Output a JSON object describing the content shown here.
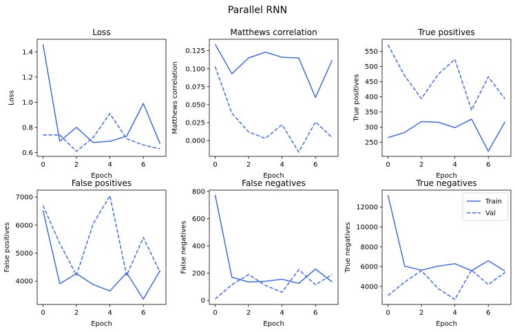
{
  "figure": {
    "title": "Parallel RNN",
    "legend": {
      "placement": "upper right",
      "entries": [
        "Train",
        "Val"
      ]
    },
    "line_color": "#4169e1",
    "axes_color": "#000000"
  },
  "chart_data": [
    {
      "type": "line",
      "title": "Loss",
      "xlabel": "Epoch",
      "ylabel": "Loss",
      "x": [
        0,
        1,
        2,
        3,
        4,
        5,
        6,
        7
      ],
      "xlim": [
        -0.35,
        7.35
      ],
      "xticks": [
        0,
        2,
        4,
        6
      ],
      "ylim": [
        0.57,
        1.5
      ],
      "yticks": [
        0.6,
        0.8,
        1.0,
        1.2,
        1.4
      ],
      "ytick_labels": [
        "0.6",
        "0.8",
        "1.0",
        "1.2",
        "1.4"
      ],
      "series": [
        {
          "name": "Train",
          "style": "solid",
          "values": [
            1.46,
            0.69,
            0.8,
            0.68,
            0.69,
            0.73,
            0.99,
            0.67
          ]
        },
        {
          "name": "Val",
          "style": "dashed",
          "values": [
            0.74,
            0.74,
            0.61,
            0.72,
            0.91,
            0.71,
            0.66,
            0.63
          ]
        }
      ]
    },
    {
      "type": "line",
      "title": "Matthews correlation",
      "xlabel": "Epoch",
      "ylabel": "Matthews correlation",
      "x": [
        0,
        1,
        2,
        3,
        4,
        5,
        6,
        7
      ],
      "xlim": [
        -0.35,
        7.35
      ],
      "xticks": [
        0,
        2,
        4,
        6
      ],
      "ylim": [
        -0.022,
        0.141
      ],
      "yticks": [
        0.0,
        0.025,
        0.05,
        0.075,
        0.1,
        0.125
      ],
      "ytick_labels": [
        "0.000",
        "0.025",
        "0.050",
        "0.075",
        "0.100",
        "0.125"
      ],
      "series": [
        {
          "name": "Train",
          "style": "solid",
          "values": [
            0.134,
            0.093,
            0.115,
            0.123,
            0.116,
            0.115,
            0.06,
            0.112
          ]
        },
        {
          "name": "Val",
          "style": "dashed",
          "values": [
            0.103,
            0.038,
            0.012,
            0.003,
            0.022,
            -0.016,
            0.026,
            0.004
          ]
        }
      ]
    },
    {
      "type": "line",
      "title": "True positives",
      "xlabel": "Epoch",
      "ylabel": "True positives",
      "x": [
        0,
        1,
        2,
        3,
        4,
        5,
        6,
        7
      ],
      "xlim": [
        -0.35,
        7.35
      ],
      "xticks": [
        0,
        2,
        4,
        6
      ],
      "ylim": [
        203,
        590
      ],
      "yticks": [
        250,
        300,
        350,
        400,
        450,
        500,
        550
      ],
      "ytick_labels": [
        "250",
        "300",
        "350",
        "400",
        "450",
        "500",
        "550"
      ],
      "series": [
        {
          "name": "Train",
          "style": "solid",
          "values": [
            265,
            282,
            318,
            316,
            298,
            326,
            220,
            317
          ]
        },
        {
          "name": "Val",
          "style": "dashed",
          "values": [
            572,
            469,
            394,
            474,
            524,
            356,
            466,
            393
          ]
        }
      ]
    },
    {
      "type": "line",
      "title": "False positives",
      "xlabel": "Epoch",
      "ylabel": "False positives",
      "x": [
        0,
        1,
        2,
        3,
        4,
        5,
        6,
        7
      ],
      "xlim": [
        -0.35,
        7.35
      ],
      "xticks": [
        0,
        2,
        4,
        6
      ],
      "ylim": [
        3170,
        7250
      ],
      "yticks": [
        4000,
        5000,
        6000,
        7000
      ],
      "ytick_labels": [
        "4000",
        "5000",
        "6000",
        "7000"
      ],
      "series": [
        {
          "name": "Train",
          "style": "solid",
          "values": [
            6520,
            3910,
            4270,
            3880,
            3650,
            4300,
            3360,
            4380
          ]
        },
        {
          "name": "Val",
          "style": "dashed",
          "values": [
            6700,
            5350,
            4210,
            6050,
            7050,
            4200,
            5560,
            4320
          ]
        }
      ]
    },
    {
      "type": "line",
      "title": "False negatives",
      "xlabel": "Epoch",
      "ylabel": "False negatives",
      "x": [
        0,
        1,
        2,
        3,
        4,
        5,
        6,
        7
      ],
      "xlim": [
        -0.35,
        7.35
      ],
      "xticks": [
        0,
        2,
        4,
        6
      ],
      "ylim": [
        -30,
        810
      ],
      "yticks": [
        0,
        200,
        400,
        600,
        800
      ],
      "ytick_labels": [
        "0",
        "200",
        "400",
        "600",
        "800"
      ],
      "series": [
        {
          "name": "Train",
          "style": "solid",
          "values": [
            775,
            170,
            135,
            140,
            155,
            125,
            230,
            135
          ]
        },
        {
          "name": "Val",
          "style": "dashed",
          "values": [
            10,
            115,
            190,
            110,
            60,
            225,
            115,
            190
          ]
        }
      ]
    },
    {
      "type": "line",
      "title": "True negatives",
      "xlabel": "Epoch",
      "ylabel": "True negatives",
      "x": [
        0,
        1,
        2,
        3,
        4,
        5,
        6,
        7
      ],
      "xlim": [
        -0.35,
        7.35
      ],
      "xticks": [
        0,
        2,
        4,
        6
      ],
      "ylim": [
        2200,
        13700
      ],
      "yticks": [
        4000,
        6000,
        8000,
        10000,
        12000
      ],
      "ytick_labels": [
        "4000",
        "6000",
        "8000",
        "10000",
        "12000"
      ],
      "series": [
        {
          "name": "Train",
          "style": "solid",
          "values": [
            13200,
            6050,
            5650,
            6050,
            6300,
            5600,
            6600,
            5550
          ]
        },
        {
          "name": "Val",
          "style": "dashed",
          "values": [
            3100,
            4450,
            5600,
            3800,
            2700,
            5650,
            4200,
            5420
          ]
        }
      ]
    }
  ]
}
